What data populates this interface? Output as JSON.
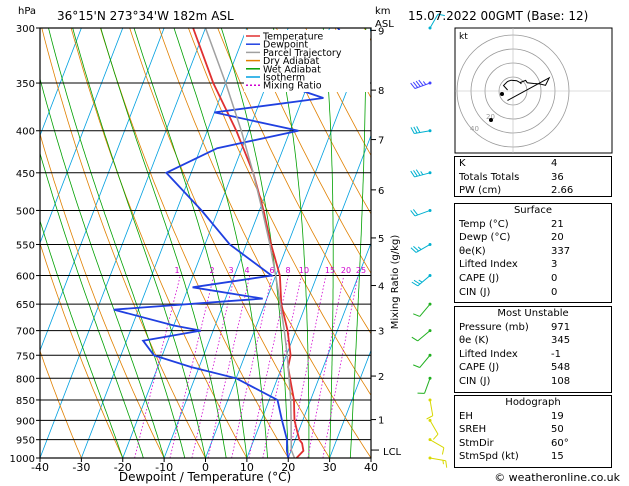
{
  "header": {
    "hpa_label": "hPa",
    "location": "36°15'N 273°34'W 182m ASL",
    "km_label": "km",
    "asl_label": "ASL",
    "datetime": "15.07.2022 00GMT (Base: 12)"
  },
  "legend": [
    {
      "label": "Temperature",
      "color": "#e03030"
    },
    {
      "label": "Dewpoint",
      "color": "#2040e0"
    },
    {
      "label": "Parcel Trajectory",
      "color": "#a0a0a0"
    },
    {
      "label": "Dry Adiabat",
      "color": "#e08000"
    },
    {
      "label": "Wet Adiabat",
      "color": "#00a000"
    },
    {
      "label": "Isotherm",
      "color": "#00a0e0"
    },
    {
      "label": "Mixing Ratio",
      "color": "#d000d0"
    }
  ],
  "chart_data": {
    "type": "line",
    "title": "Skew-T log-P diagram",
    "xlabel": "Dewpoint / Temperature (°C)",
    "ylabel": "hPa",
    "right_ylabel": "Mixing Ratio (g/kg)",
    "x_ticks": [
      -40,
      -30,
      -20,
      -10,
      0,
      10,
      20,
      30,
      40
    ],
    "y_ticks": [
      300,
      350,
      400,
      450,
      500,
      550,
      600,
      650,
      700,
      750,
      800,
      850,
      900,
      950,
      1000
    ],
    "km_ticks": [
      {
        "label": "9",
        "p": 302
      },
      {
        "label": "8",
        "p": 357
      },
      {
        "label": "7",
        "p": 410
      },
      {
        "label": "6",
        "p": 472
      },
      {
        "label": "5",
        "p": 540
      },
      {
        "label": "4",
        "p": 617
      },
      {
        "label": "3",
        "p": 700
      },
      {
        "label": "2",
        "p": 795
      },
      {
        "label": "1",
        "p": 898
      }
    ],
    "lcl_label": "LCL",
    "lcl_pressure": 978,
    "mixing_ratio_labels": [
      "1",
      "2",
      "3",
      "4",
      "6",
      "8",
      "10",
      "15",
      "20",
      "25"
    ],
    "series": [
      {
        "name": "Temperature",
        "color": "#e03030",
        "points": [
          [
            1000,
            22
          ],
          [
            980,
            23
          ],
          [
            960,
            22
          ],
          [
            950,
            21
          ],
          [
            925,
            19.5
          ],
          [
            900,
            18
          ],
          [
            875,
            17
          ],
          [
            850,
            16
          ],
          [
            800,
            13
          ],
          [
            775,
            11.5
          ],
          [
            750,
            11
          ],
          [
            700,
            8
          ],
          [
            650,
            4
          ],
          [
            600,
            1
          ],
          [
            550,
            -4
          ],
          [
            500,
            -9
          ],
          [
            450,
            -15
          ],
          [
            400,
            -23
          ],
          [
            350,
            -33
          ],
          [
            300,
            -43
          ]
        ]
      },
      {
        "name": "Dewpoint",
        "color": "#2040e0",
        "points": [
          [
            1000,
            20
          ],
          [
            980,
            19
          ],
          [
            950,
            18
          ],
          [
            900,
            15
          ],
          [
            850,
            12
          ],
          [
            800,
            0
          ],
          [
            775,
            -12
          ],
          [
            750,
            -22
          ],
          [
            720,
            -26
          ],
          [
            700,
            -13
          ],
          [
            690,
            -20
          ],
          [
            660,
            -36
          ],
          [
            640,
            -1
          ],
          [
            620,
            -19
          ],
          [
            600,
            -1
          ],
          [
            550,
            -14
          ],
          [
            500,
            -24
          ],
          [
            450,
            -36
          ],
          [
            420,
            -26
          ],
          [
            400,
            -8
          ],
          [
            380,
            -30
          ],
          [
            365,
            -5
          ],
          [
            350,
            -17
          ],
          [
            325,
            -10
          ],
          [
            310,
            -5
          ],
          [
            300,
            -8
          ]
        ]
      },
      {
        "name": "Parcel Trajectory",
        "color": "#a0a0a0",
        "points": [
          [
            1000,
            21.5
          ],
          [
            978,
            20
          ],
          [
            950,
            19
          ],
          [
            900,
            17.2
          ],
          [
            850,
            15.2
          ],
          [
            800,
            12.8
          ],
          [
            750,
            10.2
          ],
          [
            700,
            7.2
          ],
          [
            650,
            3.8
          ],
          [
            600,
            0
          ],
          [
            550,
            -4.3
          ],
          [
            500,
            -9.3
          ],
          [
            450,
            -15
          ],
          [
            400,
            -21.8
          ],
          [
            350,
            -30
          ],
          [
            300,
            -40
          ]
        ]
      }
    ]
  },
  "indices": [
    {
      "label": "K",
      "value": "4"
    },
    {
      "label": "Totals Totals",
      "value": "36"
    },
    {
      "label": "PW (cm)",
      "value": "2.66"
    }
  ],
  "surface": {
    "title": "Surface",
    "rows": [
      {
        "label": "Temp (°C)",
        "value": "21"
      },
      {
        "label": "Dewp (°C)",
        "value": "20"
      },
      {
        "label": "θe(K)",
        "value": "337"
      },
      {
        "label": "Lifted Index",
        "value": "3"
      },
      {
        "label": "CAPE (J)",
        "value": "0"
      },
      {
        "label": "CIN (J)",
        "value": "0"
      }
    ]
  },
  "most_unstable": {
    "title": "Most Unstable",
    "rows": [
      {
        "label": "Pressure (mb)",
        "value": "971"
      },
      {
        "label": "θe (K)",
        "value": "345"
      },
      {
        "label": "Lifted Index",
        "value": "-1"
      },
      {
        "label": "CAPE (J)",
        "value": "548"
      },
      {
        "label": "CIN (J)",
        "value": "108"
      }
    ]
  },
  "hodograph": {
    "title": "Hodograph",
    "kt_label": "kt",
    "ring_labels": [
      "20",
      "40"
    ],
    "rows": [
      {
        "label": "EH",
        "value": "19"
      },
      {
        "label": "SREH",
        "value": "50"
      },
      {
        "label": "StmDir",
        "value": "60°"
      },
      {
        "label": "StmSpd (kt)",
        "value": "15"
      }
    ]
  },
  "wind_profile": {
    "levels": [
      {
        "p": 300,
        "dir": 30,
        "spd": 10
      },
      {
        "p": 350,
        "dir": 250,
        "spd": 35
      },
      {
        "p": 400,
        "dir": 260,
        "spd": 30
      },
      {
        "p": 450,
        "dir": 255,
        "spd": 25
      },
      {
        "p": 500,
        "dir": 250,
        "spd": 20
      },
      {
        "p": 550,
        "dir": 240,
        "spd": 15
      },
      {
        "p": 600,
        "dir": 230,
        "spd": 15
      },
      {
        "p": 650,
        "dir": 220,
        "spd": 10
      },
      {
        "p": 700,
        "dir": 230,
        "spd": 10
      },
      {
        "p": 750,
        "dir": 220,
        "spd": 10
      },
      {
        "p": 800,
        "dir": 200,
        "spd": 10
      },
      {
        "p": 850,
        "dir": 170,
        "spd": 10
      },
      {
        "p": 900,
        "dir": 150,
        "spd": 10
      },
      {
        "p": 950,
        "dir": 120,
        "spd": 10
      },
      {
        "p": 1000,
        "dir": 100,
        "spd": 5
      }
    ]
  },
  "footer": {
    "credit": "© weatheronline.co.uk"
  }
}
